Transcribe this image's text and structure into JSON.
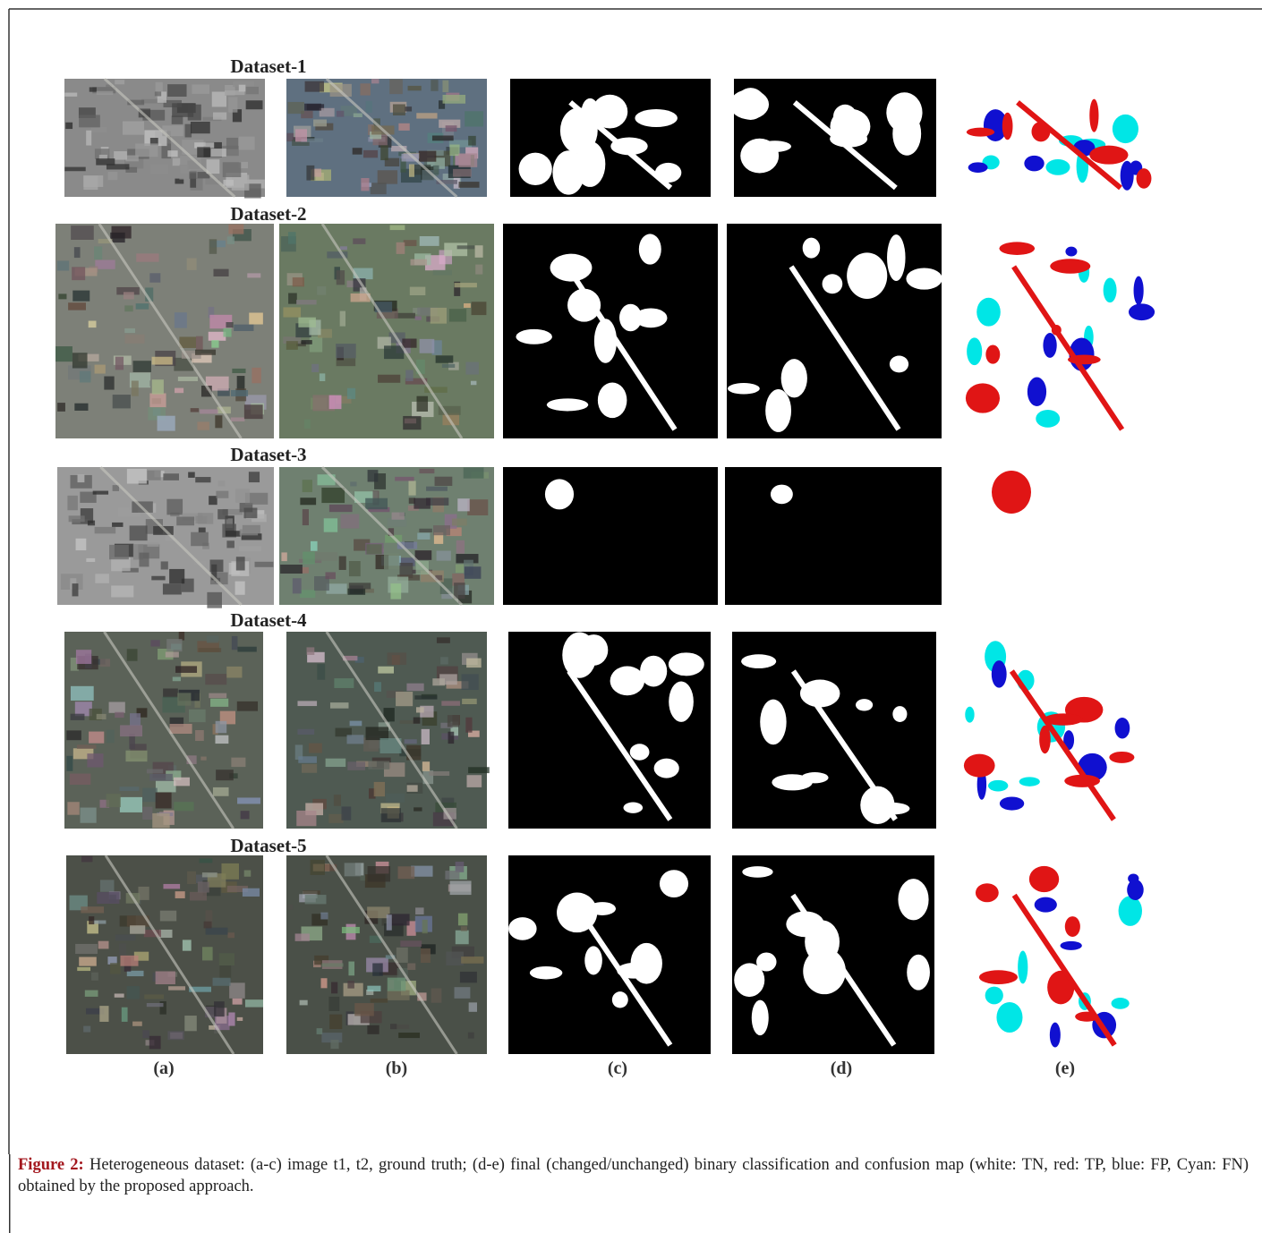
{
  "figure": {
    "rows": [
      {
        "title": "Dataset-1"
      },
      {
        "title": "Dataset-2"
      },
      {
        "title": "Dataset-3"
      },
      {
        "title": "Dataset-4"
      },
      {
        "title": "Dataset-5"
      }
    ],
    "column_labels": [
      "(a)",
      "(b)",
      "(c)",
      "(d)",
      "(e)"
    ],
    "caption": {
      "label": "Figure 2:",
      "text": "Heterogeneous dataset: (a-c) image t1, t2, ground truth; (d-e) final (changed/unchanged) binary classification and confusion map (white: TN, red: TP, blue: FP, Cyan: FN) obtained by the proposed approach."
    }
  }
}
